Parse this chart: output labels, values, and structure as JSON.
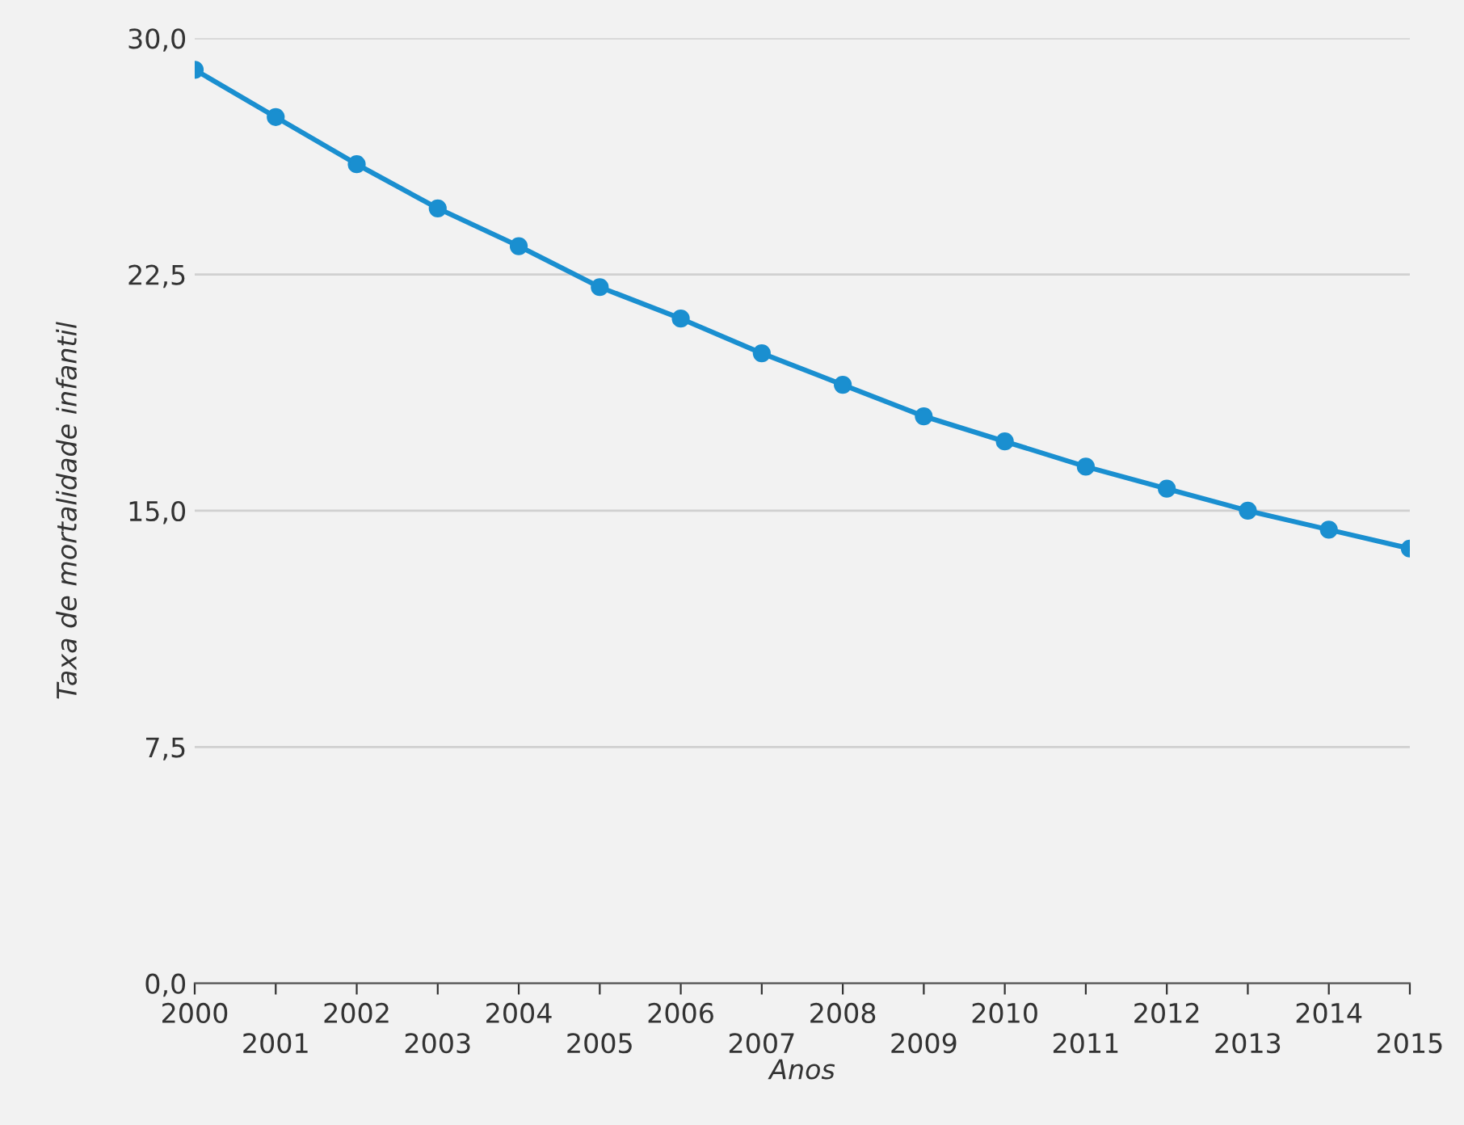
{
  "chart_data": {
    "type": "line",
    "xlabel": "Anos",
    "ylabel": "Taxa de mortalidade infantil",
    "categories": [
      "2000",
      "2001",
      "2002",
      "2003",
      "2004",
      "2005",
      "2006",
      "2007",
      "2008",
      "2009",
      "2010",
      "2011",
      "2012",
      "2013",
      "2014",
      "2015"
    ],
    "series": [
      {
        "color": "#1a8fd0",
        "values": [
          29.0,
          27.5,
          26.0,
          24.6,
          23.4,
          22.1,
          21.1,
          20.0,
          19.0,
          18.0,
          17.2,
          16.4,
          15.7,
          15.0,
          14.4,
          13.8
        ]
      }
    ],
    "ylim": [
      0,
      30
    ],
    "yticks": [
      {
        "value": 0,
        "label": "0,0"
      },
      {
        "value": 7.5,
        "label": "7,5"
      },
      {
        "value": 15,
        "label": "15,0"
      },
      {
        "value": 22.5,
        "label": "22,5"
      },
      {
        "value": 30,
        "label": "30,0"
      }
    ],
    "grid": "y",
    "marker": "circle",
    "line_style": "solid"
  }
}
